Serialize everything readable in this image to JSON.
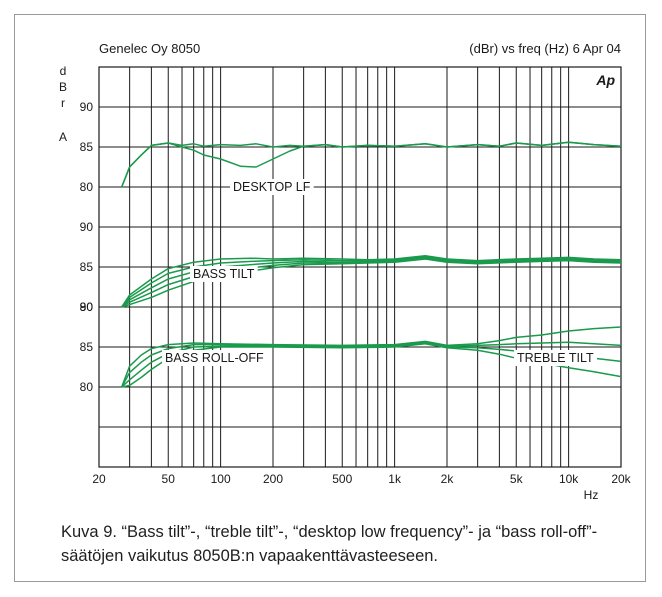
{
  "header": {
    "left_title": "Genelec Oy 8050",
    "right_title": "(dBr) vs freq (Hz) 6 Apr 04",
    "logo_text": "Ap"
  },
  "axes": {
    "ylabel_letters": [
      "d",
      "B",
      "r"
    ],
    "ylabel_a": "A",
    "xlabel": "Hz"
  },
  "caption": "Kuva 9. “Bass tilt”-, “treble tilt”-, “desktop low frequency”- ja “bass roll-off”-säätöjen vaikutus 8050B:n vapaakenttävasteeseen.",
  "chart_data": {
    "type": "line",
    "title": "Genelec Oy 8050",
    "subtitle": "(dBr) vs freq (Hz) 6 Apr 04",
    "xlabel": "Hz",
    "ylabel": "dBr A",
    "x_scale": "log",
    "xlim": [
      20,
      20000
    ],
    "grid": true,
    "x_ticks": [
      20,
      50,
      100,
      200,
      500,
      1000,
      2000,
      5000,
      10000,
      20000
    ],
    "x_tick_labels": [
      "20",
      "50",
      "100",
      "200",
      "500",
      "1k",
      "2k",
      "5k",
      "10k",
      "20k"
    ],
    "gridline_count_y": 9,
    "panels": [
      {
        "tick_labels": [
          {
            "label": "90",
            "level": 90
          },
          {
            "label": "85",
            "level": 85
          },
          {
            "label": "80",
            "level": 80
          }
        ],
        "annotation": "DESKTOP LF",
        "series": [
          {
            "x": [
              27,
              30,
              35,
              40,
              50,
              60,
              70,
              80,
              100,
              130,
              160,
              200,
              250,
              300,
              400,
              500,
              700,
              1000,
              1500,
              2000,
              3000,
              4000,
              5000,
              7000,
              10000,
              14000,
              20000
            ],
            "y": [
              80,
              82.5,
              84,
              85.2,
              85.5,
              85.2,
              85.4,
              85.1,
              85.3,
              85.2,
              85.4,
              85,
              85.2,
              85.1,
              85.3,
              85,
              85.2,
              85.1,
              85.4,
              85,
              85.3,
              85.1,
              85.5,
              85.2,
              85.6,
              85.3,
              85.1
            ]
          },
          {
            "x": [
              27,
              30,
              35,
              40,
              50,
              60,
              70,
              80,
              100,
              130,
              160,
              200,
              250,
              300,
              400,
              500,
              700,
              1000,
              1500,
              2000,
              3000,
              4000,
              5000,
              7000,
              10000,
              14000,
              20000
            ],
            "y": [
              80,
              82.5,
              84,
              85.2,
              85.5,
              85,
              84.6,
              84,
              83.5,
              82.6,
              82.5,
              83.5,
              84.5,
              85.1,
              85.3,
              85,
              85.2,
              85.1,
              85.4,
              85,
              85.3,
              85.1,
              85.5,
              85.2,
              85.6,
              85.3,
              85.1
            ]
          }
        ]
      },
      {
        "tick_labels": [
          {
            "label": "90",
            "level": 90
          },
          {
            "label": "85",
            "level": 85
          },
          {
            "label": "80",
            "level": 80
          }
        ],
        "annotation": "BASS TILT",
        "series": [
          {
            "x": [
              27,
              30,
              40,
              50,
              70,
              100,
              150,
              200,
              300,
              500,
              700,
              1000,
              1500,
              2000,
              3000,
              5000,
              7000,
              10000,
              14000,
              20000
            ],
            "y": [
              80,
              81.5,
              83.5,
              84.8,
              85.6,
              86,
              86.1,
              86,
              86.1,
              86,
              85.9,
              86,
              86.4,
              86,
              85.8,
              86,
              86.1,
              86.2,
              86,
              85.9
            ]
          },
          {
            "x": [
              27,
              30,
              40,
              50,
              70,
              100,
              150,
              200,
              300,
              500,
              700,
              1000,
              1500,
              2000,
              3000,
              5000,
              7000,
              10000,
              14000,
              20000
            ],
            "y": [
              80,
              81.2,
              83,
              84.2,
              85,
              85.5,
              85.7,
              85.8,
              85.9,
              85.8,
              85.8,
              85.9,
              86.3,
              85.9,
              85.7,
              85.9,
              86,
              86.1,
              85.9,
              85.8
            ]
          },
          {
            "x": [
              27,
              30,
              40,
              50,
              70,
              100,
              150,
              200,
              300,
              500,
              700,
              1000,
              1500,
              2000,
              3000,
              5000,
              7000,
              10000,
              14000,
              20000
            ],
            "y": [
              80,
              80.9,
              82.4,
              83.5,
              84.4,
              85,
              85.3,
              85.5,
              85.7,
              85.6,
              85.7,
              85.8,
              86.2,
              85.8,
              85.6,
              85.8,
              85.9,
              86,
              85.8,
              85.7
            ]
          },
          {
            "x": [
              27,
              30,
              40,
              50,
              70,
              100,
              150,
              200,
              300,
              500,
              700,
              1000,
              1500,
              2000,
              3000,
              5000,
              7000,
              10000,
              14000,
              20000
            ],
            "y": [
              80,
              80.6,
              81.8,
              82.8,
              83.8,
              84.5,
              84.9,
              85.2,
              85.5,
              85.5,
              85.6,
              85.7,
              86.1,
              85.7,
              85.5,
              85.7,
              85.8,
              85.9,
              85.7,
              85.6
            ]
          },
          {
            "x": [
              27,
              30,
              40,
              50,
              70,
              100,
              150,
              200,
              300,
              500,
              700,
              1000,
              1500,
              2000,
              3000,
              5000,
              7000,
              10000,
              14000,
              20000
            ],
            "y": [
              80,
              80.3,
              81.2,
              82.1,
              83.2,
              84,
              84.5,
              84.9,
              85.3,
              85.4,
              85.5,
              85.6,
              86,
              85.6,
              85.4,
              85.6,
              85.7,
              85.8,
              85.6,
              85.5
            ]
          }
        ]
      },
      {
        "tick_labels": [
          {
            "label": "90",
            "level": 90
          },
          {
            "label": "85",
            "level": 85
          },
          {
            "label": "80",
            "level": 80
          }
        ],
        "annotation_left": "BASS ROLL-OFF",
        "annotation_right": "TREBLE TILT",
        "series": [
          {
            "x": [
              27,
              30,
              35,
              40,
              50,
              70,
              100,
              200,
              500,
              1000,
              1500,
              2000,
              3000,
              4000,
              5000,
              7000,
              10000,
              14000,
              20000
            ],
            "y": [
              80,
              82.6,
              84,
              84.8,
              85.3,
              85.5,
              85.4,
              85.3,
              85.2,
              85.3,
              85.7,
              85.2,
              85.4,
              85.8,
              86.2,
              86.5,
              87,
              87.3,
              87.5
            ]
          },
          {
            "x": [
              27,
              30,
              35,
              40,
              50,
              70,
              100,
              200,
              500,
              1000,
              1500,
              2000,
              3000,
              4000,
              5000,
              7000,
              10000,
              14000,
              20000
            ],
            "y": [
              80,
              81.8,
              83.1,
              84,
              84.8,
              85.3,
              85.3,
              85.2,
              85.1,
              85.2,
              85.6,
              85.1,
              85.2,
              85.3,
              85.4,
              85.5,
              85.6,
              85.4,
              85.2
            ]
          },
          {
            "x": [
              27,
              30,
              35,
              40,
              50,
              70,
              100,
              200,
              500,
              1000,
              1500,
              2000,
              3000,
              4000,
              5000,
              7000,
              10000,
              14000,
              20000
            ],
            "y": [
              80,
              80.9,
              82.1,
              83.1,
              84.2,
              85,
              85.1,
              85.1,
              85,
              85.1,
              85.5,
              85,
              84.9,
              84.7,
              84.5,
              84.2,
              83.9,
              83.6,
              83.2
            ]
          },
          {
            "x": [
              27,
              30,
              35,
              40,
              50,
              70,
              100,
              200,
              500,
              1000,
              1500,
              2000,
              3000,
              4000,
              5000,
              7000,
              10000,
              14000,
              20000
            ],
            "y": [
              80,
              80.2,
              81.2,
              82.2,
              83.6,
              84.6,
              85,
              85,
              84.9,
              85,
              85.4,
              84.9,
              84.6,
              84.1,
              83.6,
              83,
              82.4,
              81.9,
              81.3
            ]
          }
        ]
      }
    ]
  },
  "colors": {
    "curve": "#1a9a4c",
    "grid": "#1a1a1a",
    "frame": "#9a9a9a",
    "text": "#1a1a1a"
  }
}
